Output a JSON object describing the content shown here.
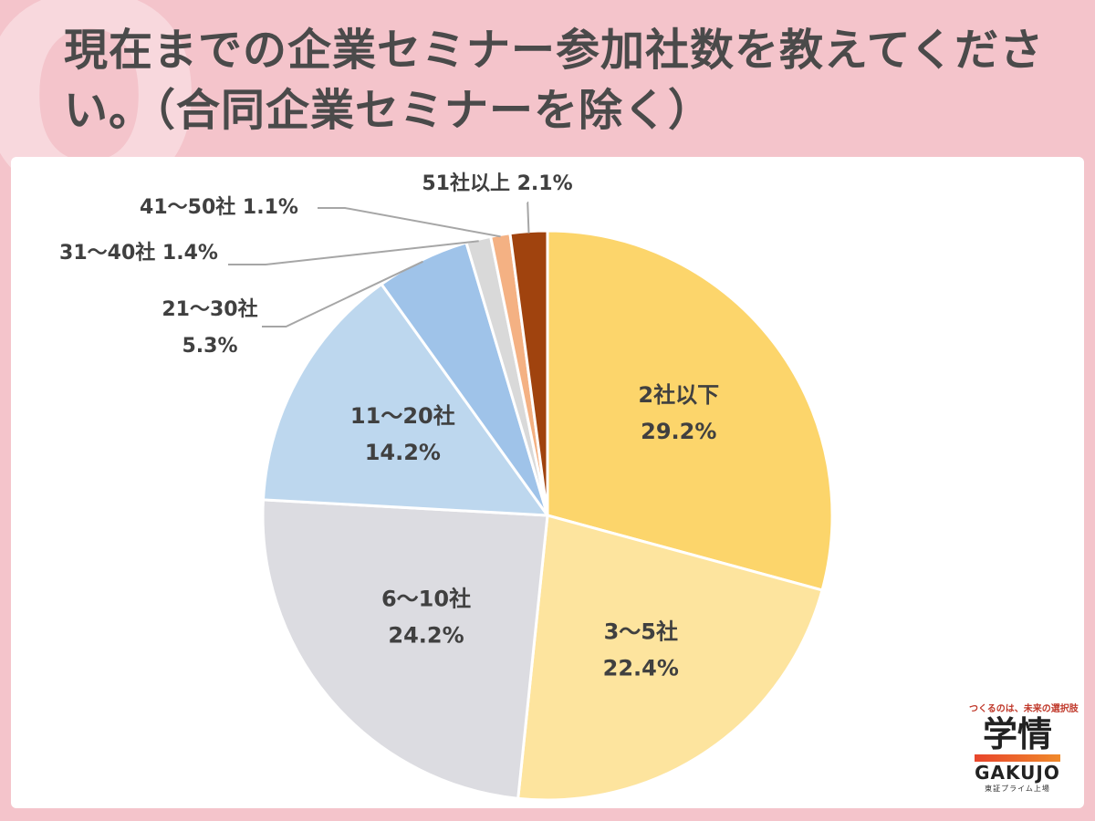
{
  "title": "現在までの企業セミナー参加社数を教えてください。（合同企業セミナーを除く）",
  "chart_data": {
    "type": "pie",
    "title": "現在までの企業セミナー参加社数を教えてください。（合同企業セミナーを除く）",
    "start": "12 o'clock",
    "direction": "clockwise",
    "legend": "none",
    "slices": [
      {
        "label": "2社以下",
        "value": 29.2,
        "value_label": "29.2%",
        "color": "#fcd56b"
      },
      {
        "label": "3〜5社",
        "value": 22.4,
        "value_label": "22.4%",
        "color": "#fde49e"
      },
      {
        "label": "6〜10社",
        "value": 24.2,
        "value_label": "24.2%",
        "color": "#dcdce1"
      },
      {
        "label": "11〜20社",
        "value": 14.2,
        "value_label": "14.2%",
        "color": "#bdd7ee"
      },
      {
        "label": "21〜30社",
        "value": 5.3,
        "value_label": "5.3%",
        "color": "#9fc3e9"
      },
      {
        "label": "31〜40社",
        "value": 1.4,
        "value_label": "1.4%",
        "color": "#d9d9d9"
      },
      {
        "label": "41〜50社",
        "value": 1.1,
        "value_label": "1.1%",
        "color": "#f4b183"
      },
      {
        "label": "51社以上",
        "value": 2.1,
        "value_label": "2.1%",
        "color": "#a0430e"
      }
    ]
  },
  "brand": {
    "tagline": "つくるのは、未来の選択肢",
    "name": "学情",
    "latin": "GAKUJO",
    "listing": "東証プライム上場"
  }
}
